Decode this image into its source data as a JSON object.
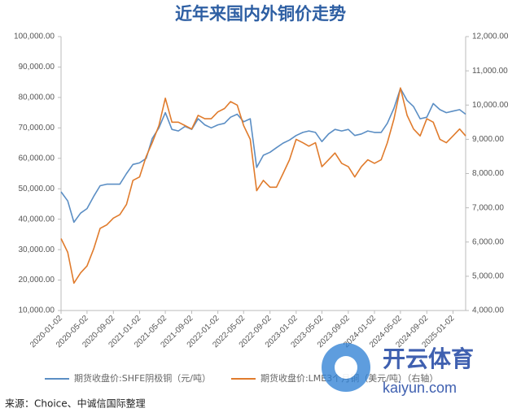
{
  "chart_data": {
    "type": "line",
    "title": "近年来国内外铜价走势",
    "source": "来源：Choice、中诚信国际整理",
    "watermark": {
      "brand": "开云体育",
      "url": "kaiyun.com"
    },
    "x": [
      "2020-01-02",
      "2020-02-02",
      "2020-03-02",
      "2020-04-02",
      "2020-05-02",
      "2020-06-02",
      "2020-07-02",
      "2020-08-02",
      "2020-09-02",
      "2020-10-02",
      "2020-11-02",
      "2020-12-02",
      "2021-01-02",
      "2021-02-02",
      "2021-03-02",
      "2021-04-02",
      "2021-05-02",
      "2021-06-02",
      "2021-07-02",
      "2021-08-02",
      "2021-09-02",
      "2021-10-02",
      "2021-11-02",
      "2021-12-02",
      "2022-01-02",
      "2022-02-02",
      "2022-03-02",
      "2022-04-02",
      "2022-05-02",
      "2022-06-02",
      "2022-07-02",
      "2022-08-02",
      "2022-09-02",
      "2022-10-02",
      "2022-11-02",
      "2022-12-02",
      "2023-01-02",
      "2023-02-02",
      "2023-03-02",
      "2023-04-02",
      "2023-05-02",
      "2023-06-02",
      "2023-07-02",
      "2023-08-02",
      "2023-09-02",
      "2023-10-02",
      "2023-11-02",
      "2023-12-02",
      "2024-01-02",
      "2024-02-02",
      "2024-03-02",
      "2024-04-02",
      "2024-05-02",
      "2024-06-02",
      "2024-07-02",
      "2024-08-02",
      "2024-09-02",
      "2024-10-02",
      "2024-11-02",
      "2024-12-02",
      "2025-01-02",
      "2025-02-02",
      "2025-03-02"
    ],
    "xlim": [
      "2020-01-02",
      "2025-03-02"
    ],
    "xticks": [
      "2020-01-02",
      "2020-05-02",
      "2020-09-02",
      "2021-01-02",
      "2021-05-02",
      "2021-09-02",
      "2022-01-02",
      "2022-05-02",
      "2022-09-02",
      "2023-01-02",
      "2023-05-02",
      "2023-09-02",
      "2024-01-02",
      "2024-05-02",
      "2024-09-02",
      "2025-01-02"
    ],
    "ylim": [
      10000,
      100000
    ],
    "yticks": [
      {
        "value": 10000,
        "label": "10,000.00"
      },
      {
        "value": 20000,
        "label": "20,000.00"
      },
      {
        "value": 30000,
        "label": "30,000.00"
      },
      {
        "value": 40000,
        "label": "40,000.00"
      },
      {
        "value": 50000,
        "label": "50,000.00"
      },
      {
        "value": 60000,
        "label": "60,000.00"
      },
      {
        "value": 70000,
        "label": "70,000.00"
      },
      {
        "value": 80000,
        "label": "80,000.00"
      },
      {
        "value": 90000,
        "label": "90,000.00"
      },
      {
        "value": 100000,
        "label": "100,000.00"
      }
    ],
    "y2lim": [
      4000,
      12000
    ],
    "y2ticks": [
      {
        "value": 4000,
        "label": "4,000.00"
      },
      {
        "value": 5000,
        "label": "5,000.00"
      },
      {
        "value": 6000,
        "label": "6,000.00"
      },
      {
        "value": 7000,
        "label": "7,000.00"
      },
      {
        "value": 8000,
        "label": "8,000.00"
      },
      {
        "value": 9000,
        "label": "9,000.00"
      },
      {
        "value": 10000,
        "label": "10,000.00"
      },
      {
        "value": 11000,
        "label": "11,000.00"
      },
      {
        "value": 12000,
        "label": "12,000.00"
      }
    ],
    "grid": false,
    "series": [
      {
        "name": "期货收盘价:SHFE阴极铜（元/吨）",
        "color": "#5b8ec4",
        "axis": "y",
        "values": [
          49000,
          46000,
          39000,
          42000,
          43500,
          47500,
          51000,
          51500,
          51500,
          51500,
          55000,
          58000,
          58500,
          60000,
          66500,
          70000,
          75000,
          69500,
          69000,
          70500,
          69500,
          73000,
          71000,
          70000,
          71000,
          71500,
          73500,
          74500,
          72000,
          73000,
          57000,
          61000,
          62000,
          63500,
          65000,
          66000,
          67500,
          68500,
          69000,
          68500,
          65500,
          68000,
          69500,
          69000,
          69500,
          67500,
          68000,
          69000,
          68500,
          68500,
          71500,
          76500,
          83000,
          79000,
          77000,
          73000,
          73500,
          78000,
          76000,
          75000,
          75500,
          76000,
          74500
        ]
      },
      {
        "name": "期货收盘价:LME3个月铜（美元/吨）（右轴）",
        "color": "#e07b2c",
        "axis": "y2",
        "values": [
          6100,
          5700,
          4800,
          5100,
          5300,
          5800,
          6400,
          6500,
          6700,
          6800,
          7100,
          7800,
          7900,
          8500,
          8900,
          9400,
          10200,
          9500,
          9500,
          9400,
          9300,
          9700,
          9600,
          9600,
          9800,
          9900,
          10100,
          10000,
          9400,
          9000,
          7500,
          7800,
          7600,
          7600,
          8000,
          8400,
          9000,
          8900,
          8800,
          8900,
          8200,
          8400,
          8600,
          8300,
          8200,
          7900,
          8200,
          8400,
          8300,
          8400,
          8900,
          9600,
          10500,
          9700,
          9300,
          9100,
          9600,
          9500,
          9000,
          8900,
          9100,
          9300,
          9100
        ]
      }
    ]
  }
}
